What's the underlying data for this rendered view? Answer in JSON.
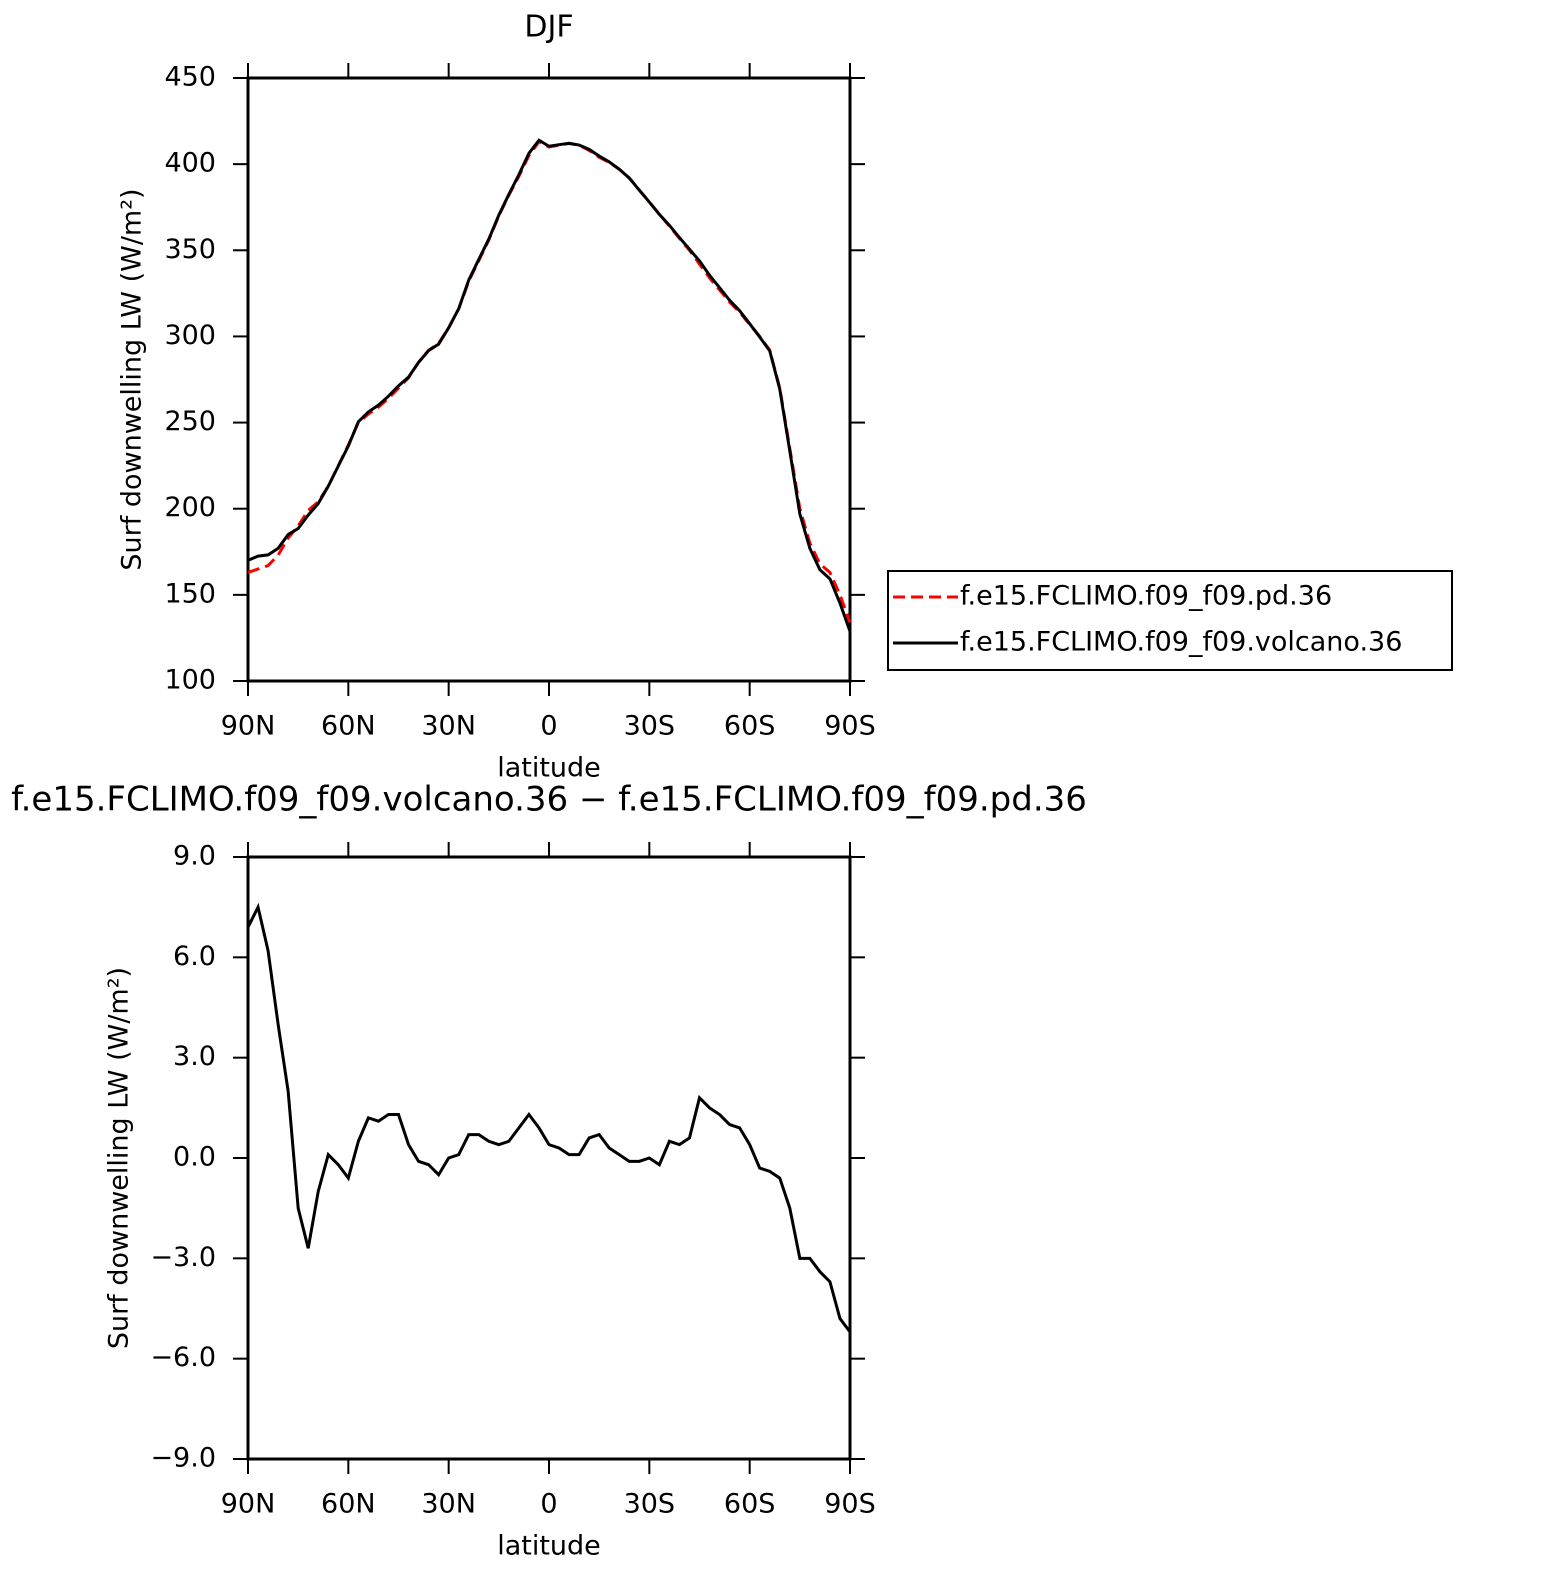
{
  "chart_data": [
    {
      "type": "line",
      "title": "DJF",
      "xlabel": "latitude",
      "ylabel": "Surf downwelling LW (W/m²)",
      "x": [
        90,
        87,
        84,
        81,
        78,
        75,
        72,
        69,
        66,
        63,
        60,
        57,
        54,
        51,
        48,
        45,
        42,
        39,
        36,
        33,
        30,
        27,
        24,
        21,
        18,
        15,
        12,
        9,
        6,
        3,
        0,
        -3,
        -6,
        -9,
        -12,
        -15,
        -18,
        -21,
        -24,
        -27,
        -30,
        -33,
        -36,
        -39,
        -42,
        -45,
        -48,
        -51,
        -54,
        -57,
        -60,
        -63,
        -66,
        -69,
        -72,
        -75,
        -78,
        -81,
        -84,
        -87,
        -90
      ],
      "series": [
        {
          "name": "f.e15.FCLIMO.f09_f09.pd.36",
          "color": "#ff0000",
          "line_style": "dashed",
          "values": [
            163,
            165,
            167,
            173,
            183,
            190,
            199,
            204,
            213,
            225,
            237,
            250,
            255,
            259,
            264,
            270,
            276,
            285,
            292,
            296,
            305,
            316,
            332,
            344,
            356,
            370,
            382,
            393,
            405,
            413,
            410,
            411,
            412,
            411,
            408,
            404,
            401,
            397,
            392,
            385,
            378,
            371,
            364,
            357,
            350,
            342,
            334,
            327,
            320,
            314,
            307,
            300,
            292,
            270,
            235,
            200,
            180,
            168,
            163,
            150,
            134
          ]
        },
        {
          "name": "f.e15.FCLIMO.f09_f09.volcano.36",
          "color": "#000000",
          "line_style": "solid",
          "values": [
            170,
            172.5,
            173.2,
            177,
            185,
            188.5,
            196.3,
            203,
            213.1,
            224.8,
            236.4,
            250.5,
            256.2,
            260.1,
            265.3,
            271.3,
            276.4,
            284.9,
            291.8,
            295.5,
            305,
            316.1,
            332.7,
            344.7,
            356.5,
            370.4,
            382.5,
            393.9,
            406.3,
            413.9,
            410.4,
            411.3,
            412.1,
            411.1,
            408.6,
            404.7,
            401.3,
            397.1,
            391.9,
            384.9,
            378,
            370.8,
            364.5,
            357.4,
            350.6,
            343.8,
            335.5,
            328.3,
            321,
            314.9,
            307.4,
            299.7,
            291.6,
            269.4,
            233.5,
            197,
            177,
            164.6,
            159.3,
            145.2,
            128.8
          ]
        }
      ],
      "xlim": [
        90,
        -90
      ],
      "xticks": [
        {
          "value": 90,
          "label": "90N"
        },
        {
          "value": 60,
          "label": "60N"
        },
        {
          "value": 30,
          "label": "30N"
        },
        0,
        {
          "value": -30,
          "label": "30S"
        },
        {
          "value": -60,
          "label": "60S"
        },
        {
          "value": -90,
          "label": "90S"
        }
      ],
      "ylim": [
        100,
        450
      ],
      "yticks": [
        100,
        150,
        200,
        250,
        300,
        350,
        400,
        450
      ],
      "legend": true,
      "legend_position": "right"
    },
    {
      "type": "line",
      "title": "f.e15.FCLIMO.f09_f09.volcano.36 − f.e15.FCLIMO.f09_f09.pd.36",
      "xlabel": "latitude",
      "ylabel": "Surf downwelling LW (W/m²)",
      "x": [
        90,
        87,
        84,
        81,
        78,
        75,
        72,
        69,
        66,
        63,
        60,
        57,
        54,
        51,
        48,
        45,
        42,
        39,
        36,
        33,
        30,
        27,
        24,
        21,
        18,
        15,
        12,
        9,
        6,
        3,
        0,
        -3,
        -6,
        -9,
        -12,
        -15,
        -18,
        -21,
        -24,
        -27,
        -30,
        -33,
        -36,
        -39,
        -42,
        -45,
        -48,
        -51,
        -54,
        -57,
        -60,
        -63,
        -66,
        -69,
        -72,
        -75,
        -78,
        -81,
        -84,
        -87,
        -90
      ],
      "color": "#000000",
      "values": [
        6.9,
        7.5,
        6.2,
        4.0,
        2.0,
        -1.5,
        -2.7,
        -1.0,
        0.1,
        -0.2,
        -0.6,
        0.5,
        1.2,
        1.1,
        1.3,
        1.3,
        0.4,
        -0.1,
        -0.2,
        -0.5,
        0.0,
        0.1,
        0.7,
        0.7,
        0.5,
        0.4,
        0.5,
        0.9,
        1.3,
        0.9,
        0.4,
        0.3,
        0.1,
        0.1,
        0.6,
        0.7,
        0.3,
        0.1,
        -0.1,
        -0.1,
        0.0,
        -0.2,
        0.5,
        0.4,
        0.6,
        1.8,
        1.5,
        1.3,
        1.0,
        0.9,
        0.4,
        -0.3,
        -0.4,
        -0.6,
        -1.5,
        -3.0,
        -3.0,
        -3.4,
        -3.7,
        -4.8,
        -5.2
      ],
      "xlim": [
        90,
        -90
      ],
      "xticks": [
        {
          "value": 90,
          "label": "90N"
        },
        {
          "value": 60,
          "label": "60N"
        },
        {
          "value": 30,
          "label": "30N"
        },
        0,
        {
          "value": -30,
          "label": "30S"
        },
        {
          "value": -60,
          "label": "60S"
        },
        {
          "value": -90,
          "label": "90S"
        }
      ],
      "ylim": [
        -9,
        9
      ],
      "yticks": [
        {
          "value": -9,
          "label": "−9.0"
        },
        {
          "value": -6,
          "label": "−6.0"
        },
        {
          "value": -3,
          "label": "−3.0"
        },
        {
          "value": 0,
          "label": "0.0"
        },
        {
          "value": 3,
          "label": "3.0"
        },
        {
          "value": 6,
          "label": "6.0"
        },
        {
          "value": 9,
          "label": "9.0"
        }
      ]
    }
  ]
}
